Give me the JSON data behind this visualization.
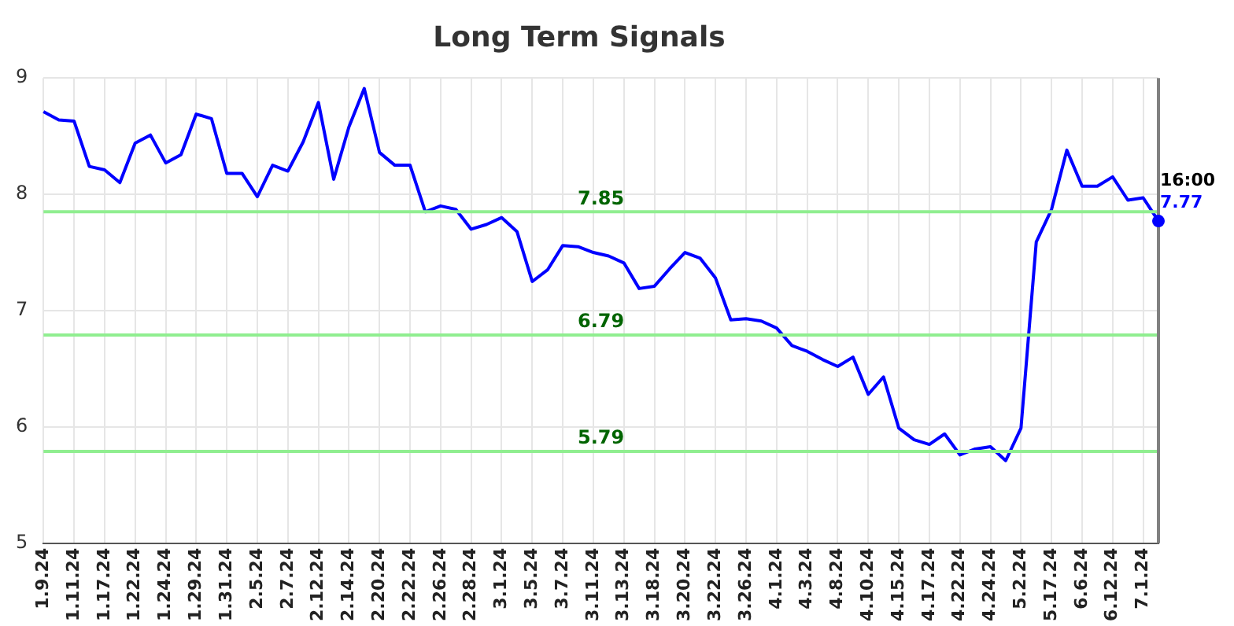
{
  "chart_data": {
    "type": "line",
    "title": "Long Term Signals",
    "categories": [
      "1.9.24",
      null,
      "1.11.24",
      null,
      "1.17.24",
      null,
      "1.22.24",
      null,
      "1.24.24",
      null,
      "1.29.24",
      null,
      "1.31.24",
      null,
      "2.5.24",
      null,
      "2.7.24",
      null,
      "2.12.24",
      null,
      "2.14.24",
      null,
      "2.20.24",
      null,
      "2.22.24",
      null,
      "2.26.24",
      null,
      "2.28.24",
      null,
      "3.1.24",
      null,
      "3.5.24",
      null,
      "3.7.24",
      null,
      "3.11.24",
      null,
      "3.13.24",
      null,
      "3.18.24",
      null,
      "3.20.24",
      null,
      "3.22.24",
      null,
      "3.26.24",
      null,
      "4.1.24",
      null,
      "4.3.24",
      null,
      "4.8.24",
      null,
      "4.10.24",
      null,
      "4.15.24",
      null,
      "4.17.24",
      null,
      "4.22.24",
      null,
      "4.24.24",
      null,
      "5.2.24",
      null,
      "5.17.24",
      null,
      "6.6.24",
      null,
      "6.12.24",
      null,
      "7.1.24",
      null
    ],
    "series": [
      {
        "color": "#0000ff",
        "values": [
          8.71,
          8.64,
          8.63,
          8.24,
          8.21,
          8.1,
          8.44,
          8.51,
          8.27,
          8.34,
          8.69,
          8.65,
          8.18,
          8.18,
          7.98,
          8.25,
          8.2,
          8.45,
          8.79,
          8.13,
          8.58,
          8.91,
          8.36,
          8.25,
          8.25,
          7.85,
          7.9,
          7.87,
          7.7,
          7.74,
          7.8,
          7.68,
          7.25,
          7.35,
          7.56,
          7.55,
          7.5,
          7.47,
          7.41,
          7.19,
          7.21,
          7.36,
          7.5,
          7.45,
          7.28,
          6.92,
          6.93,
          6.91,
          6.85,
          6.7,
          6.65,
          6.58,
          6.52,
          6.6,
          6.28,
          6.43,
          5.99,
          5.89,
          5.85,
          5.94,
          5.76,
          5.81,
          5.83,
          5.71,
          5.99,
          7.59,
          7.87,
          8.38,
          8.07,
          8.07,
          8.15,
          7.95,
          7.97,
          7.77
        ]
      }
    ],
    "ylim": [
      5,
      9
    ],
    "yticks": [
      5,
      6,
      7,
      8,
      9
    ],
    "grid": true,
    "legend": false,
    "marker": "none",
    "line_style": "solid",
    "ref_lines": [
      {
        "axis": "y",
        "value": 7.85,
        "label": "7.85",
        "color": "#90ee90"
      },
      {
        "axis": "y",
        "value": 6.79,
        "label": "6.79",
        "color": "#90ee90"
      },
      {
        "axis": "y",
        "value": 5.79,
        "label": "5.79",
        "color": "#90ee90"
      }
    ],
    "annotations": [
      "16:00",
      "7.77"
    ]
  }
}
